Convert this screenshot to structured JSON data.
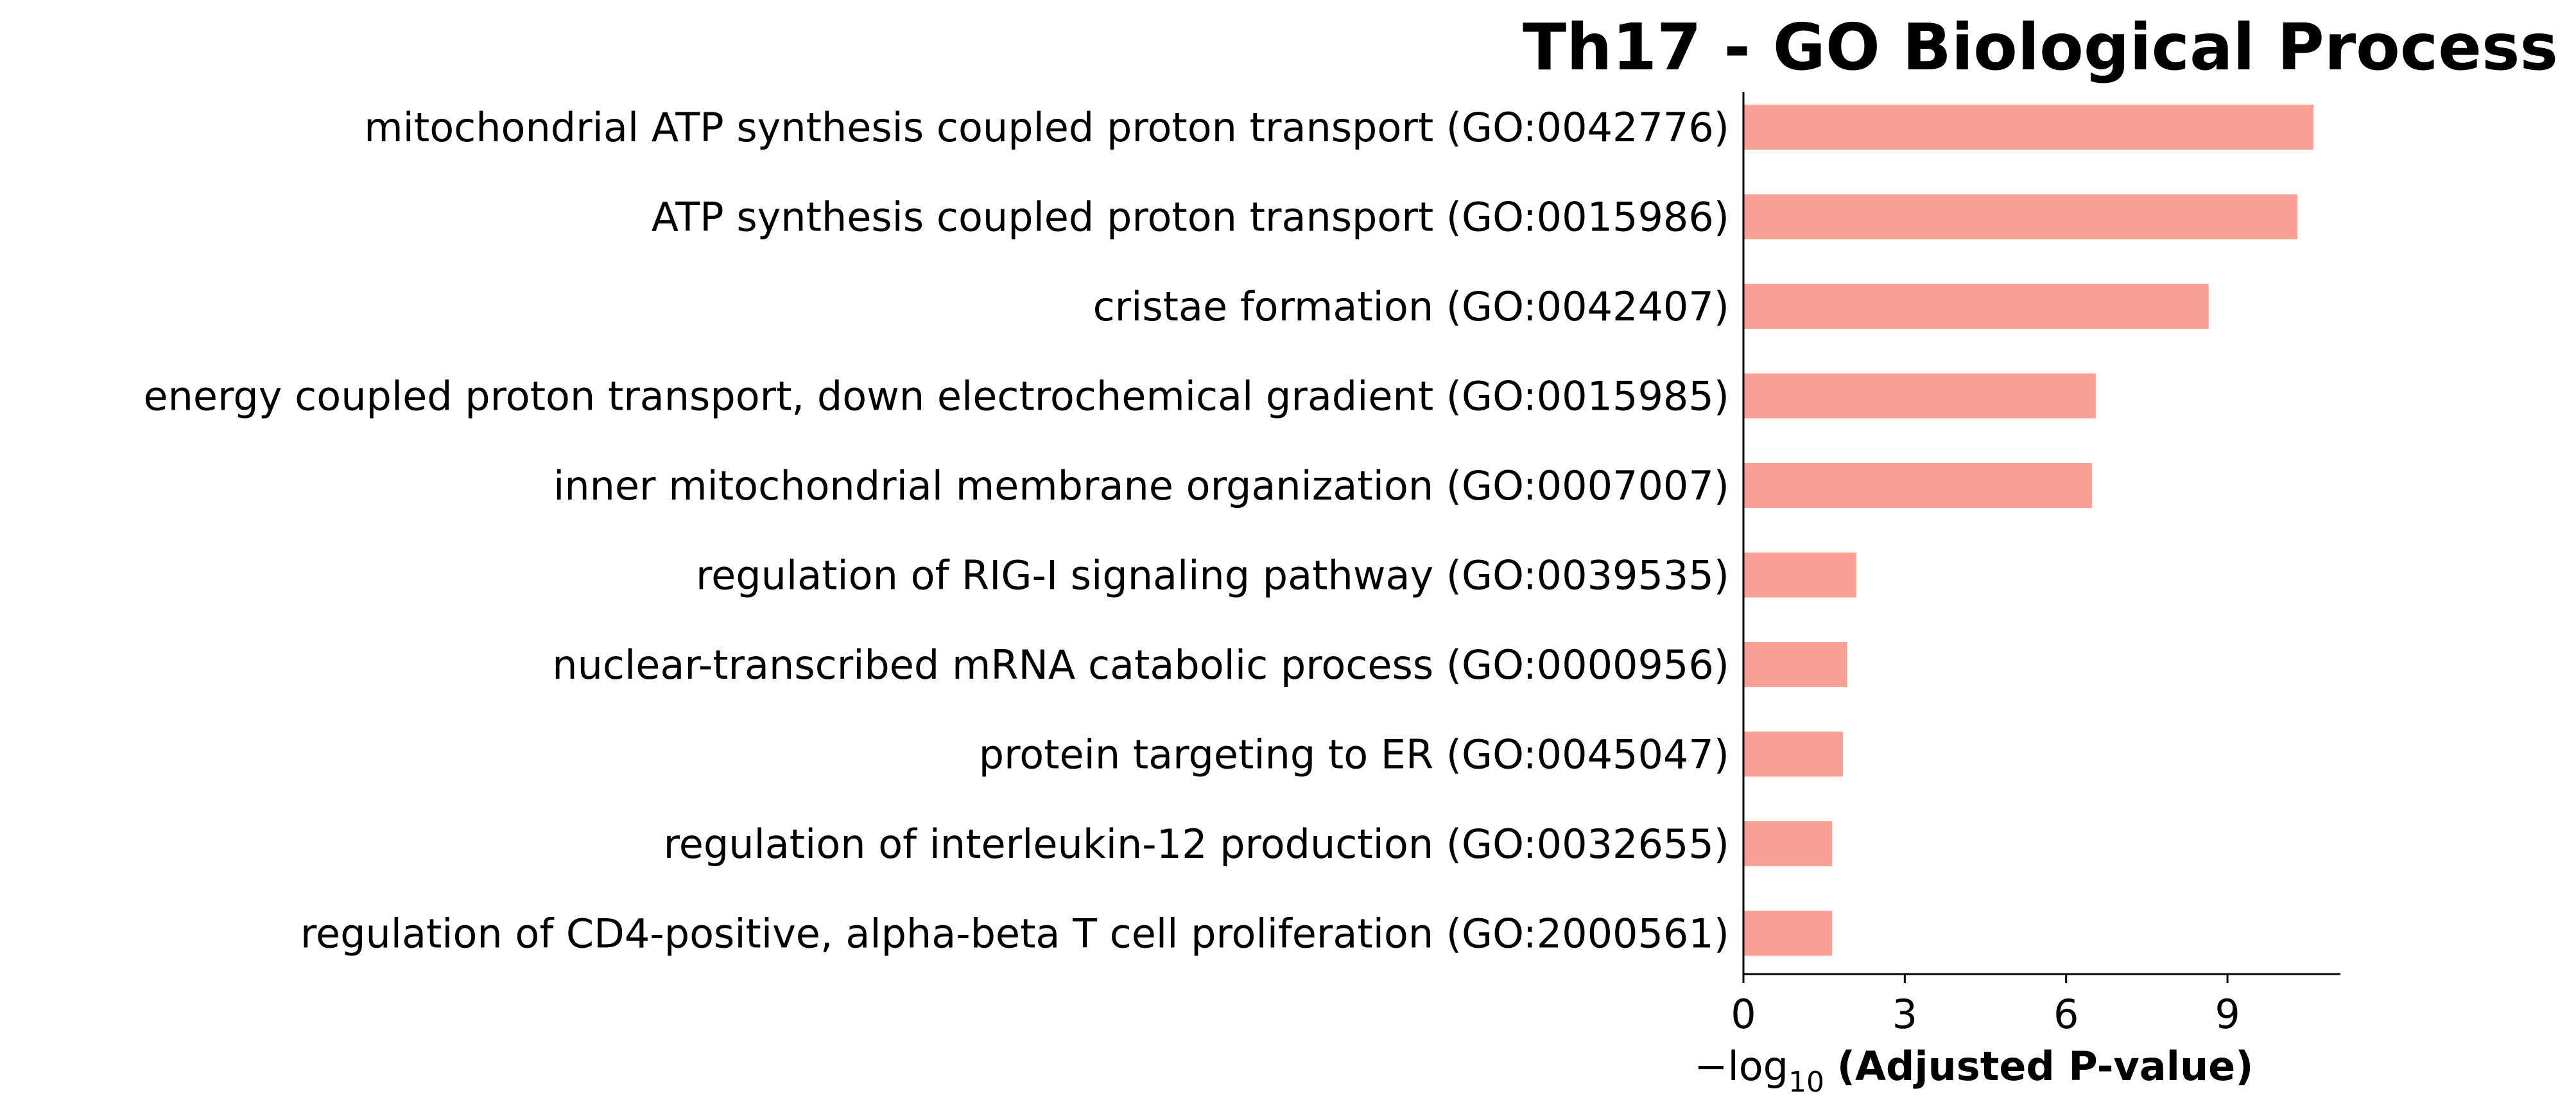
{
  "chart_data": {
    "type": "bar",
    "orientation": "horizontal",
    "title": "Th17 - GO Biological Process",
    "xlabel": {
      "prefix": "−log",
      "subscript": "10",
      "suffix": "(Adjusted P-value)"
    },
    "ylabel": "",
    "categories": [
      "mitochondrial ATP synthesis coupled proton transport (GO:0042776)",
      "ATP synthesis coupled proton transport (GO:0015986)",
      "cristae formation (GO:0042407)",
      "energy coupled proton transport, down electrochemical gradient (GO:0015985)",
      "inner mitochondrial membrane organization (GO:0007007)",
      "regulation of RIG-I signaling pathway (GO:0039535)",
      "nuclear-transcribed mRNA catabolic process (GO:0000956)",
      "protein targeting to ER (GO:0045047)",
      "regulation of interleukin-12 production (GO:0032655)",
      "regulation of CD4-positive, alpha-beta T cell proliferation (GO:2000561)"
    ],
    "values": [
      10.6,
      10.3,
      8.65,
      6.55,
      6.48,
      2.1,
      1.93,
      1.85,
      1.65,
      1.65
    ],
    "xlim": [
      0,
      11.1
    ],
    "xticks": [
      0,
      3,
      6,
      9
    ],
    "bar_color": "#fba094",
    "grid": false,
    "legend": "none"
  }
}
